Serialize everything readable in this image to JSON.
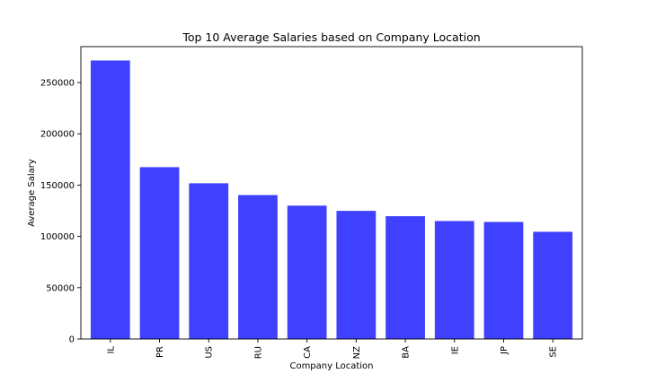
{
  "chart_data": {
    "type": "bar",
    "title": "Top 10 Average Salaries based on Company Location",
    "xlabel": "Company Location",
    "ylabel": "Average Salary",
    "categories": [
      "IL",
      "PR",
      "US",
      "RU",
      "CA",
      "NZ",
      "BA",
      "IE",
      "JP",
      "SE"
    ],
    "values": [
      271500,
      167500,
      151800,
      140300,
      130000,
      124900,
      119700,
      115000,
      114100,
      104500
    ],
    "ylim": [
      0,
      285000
    ],
    "yticks": [
      0,
      50000,
      100000,
      150000,
      200000,
      250000
    ],
    "ytick_labels": [
      "0",
      "50000",
      "100000",
      "150000",
      "200000",
      "250000"
    ],
    "bar_color": "#4040ff",
    "grid": false,
    "legend": "none"
  }
}
